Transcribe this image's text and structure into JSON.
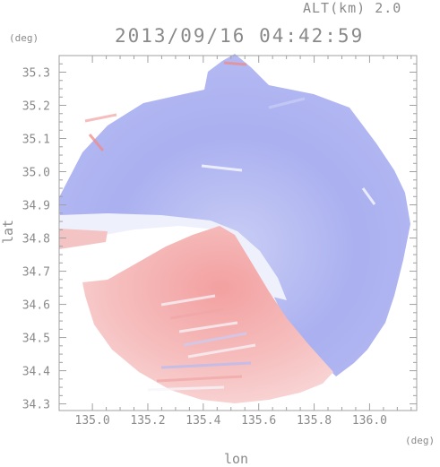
{
  "header": {
    "altitude_label": "ALT(km) 2.0",
    "datetime_label": "2013/09/16 04:42:59"
  },
  "axes": {
    "y_unit": "(deg)",
    "x_unit": "(deg)",
    "y_label": "lat",
    "x_label": "lon"
  },
  "chart_data": {
    "type": "heatmap",
    "title": "2013/09/16 04:42:59",
    "xlabel": "lon",
    "ylabel": "lat",
    "xlim": [
      134.88,
      136.17
    ],
    "ylim": [
      34.28,
      35.35
    ],
    "xticks": [
      135.0,
      135.2,
      135.4,
      135.6,
      135.8,
      136.0
    ],
    "xtick_labels": [
      "135.0",
      "135.2",
      "135.4",
      "135.6",
      "135.8",
      "136.0"
    ],
    "yticks": [
      34.3,
      34.4,
      34.5,
      34.6,
      34.7,
      34.8,
      34.9,
      35.0,
      35.1,
      35.2,
      35.3
    ],
    "ytick_labels": [
      "34.3",
      "34.4",
      "34.5",
      "34.6",
      "34.7",
      "34.8",
      "34.9",
      "35.0",
      "35.1",
      "35.2",
      "35.3"
    ],
    "radar_center": {
      "lon": 135.48,
      "lat": 34.81
    },
    "colors": {
      "approaching": "#8a8ff0",
      "receding": "#f07a7a",
      "frame": "#a0a0a0",
      "text": "#8a8a8a"
    },
    "grid": false
  }
}
